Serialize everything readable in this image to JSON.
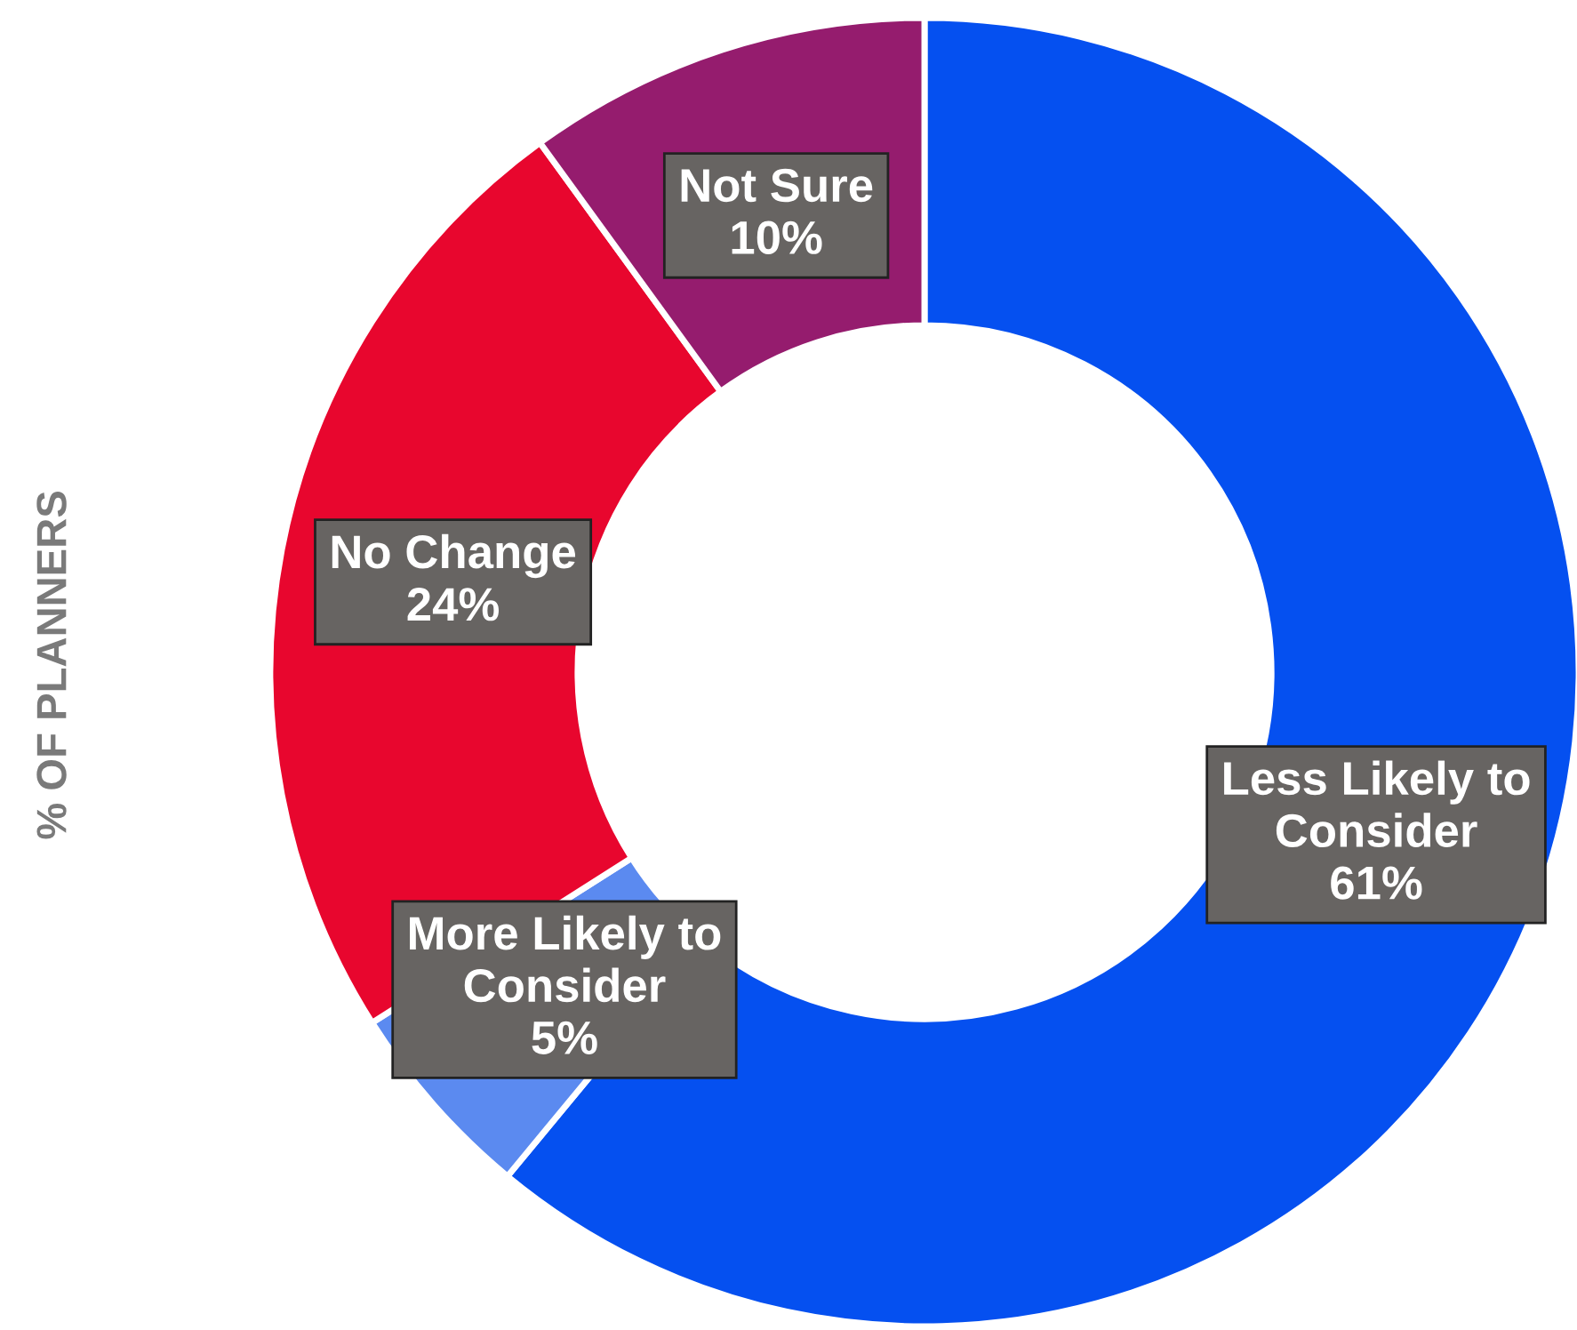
{
  "chart_data": {
    "type": "donut",
    "ylabel": "% OF PLANNERS",
    "categories": [
      "Less Likely to Consider",
      "More Likely to Consider",
      "No Change",
      "Not Sure"
    ],
    "values": [
      61,
      5,
      24,
      10
    ],
    "colors": [
      "#0550f0",
      "#5b8af0",
      "#e8062e",
      "#951c6e"
    ],
    "value_labels": [
      "61%",
      "5%",
      "24%",
      "10%"
    ],
    "legend": false
  }
}
